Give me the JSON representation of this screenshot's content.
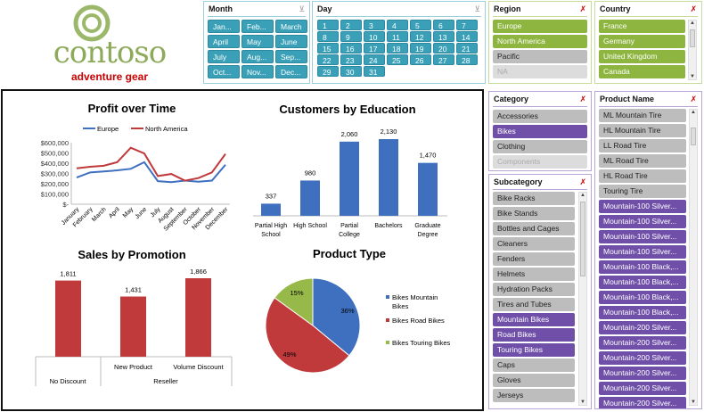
{
  "logo": {
    "name": "contoso",
    "tagline": "adventure gear"
  },
  "month": {
    "title": "Month",
    "items": [
      "Jan...",
      "Feb...",
      "March",
      "April",
      "May",
      "June",
      "July",
      "Aug...",
      "Sep...",
      "Oct...",
      "Nov...",
      "Dec..."
    ]
  },
  "day": {
    "title": "Day",
    "items": [
      "1",
      "2",
      "3",
      "4",
      "5",
      "6",
      "7",
      "8",
      "9",
      "10",
      "11",
      "12",
      "13",
      "14",
      "15",
      "16",
      "17",
      "18",
      "19",
      "20",
      "21",
      "22",
      "23",
      "24",
      "25",
      "26",
      "27",
      "28",
      "29",
      "30",
      "31"
    ]
  },
  "region": {
    "title": "Region",
    "items": [
      {
        "label": "Europe",
        "state": "selected"
      },
      {
        "label": "North America",
        "state": "selected"
      },
      {
        "label": "Pacific",
        "state": "unselected"
      },
      {
        "label": "NA",
        "state": "empty"
      }
    ]
  },
  "country": {
    "title": "Country",
    "items": [
      "France",
      "Germany",
      "United Kingdom",
      "Canada"
    ]
  },
  "category": {
    "title": "Category",
    "items": [
      {
        "label": "Accessories",
        "state": "unselected"
      },
      {
        "label": "Bikes",
        "state": "selected"
      },
      {
        "label": "Clothing",
        "state": "unselected"
      },
      {
        "label": "Components",
        "state": "empty"
      }
    ]
  },
  "subcategory": {
    "title": "Subcategory",
    "items": [
      {
        "label": "Bike Racks",
        "state": "unselected"
      },
      {
        "label": "Bike Stands",
        "state": "unselected"
      },
      {
        "label": "Bottles and Cages",
        "state": "unselected"
      },
      {
        "label": "Cleaners",
        "state": "unselected"
      },
      {
        "label": "Fenders",
        "state": "unselected"
      },
      {
        "label": "Helmets",
        "state": "unselected"
      },
      {
        "label": "Hydration Packs",
        "state": "unselected"
      },
      {
        "label": "Tires and Tubes",
        "state": "unselected"
      },
      {
        "label": "Mountain Bikes",
        "state": "selected"
      },
      {
        "label": "Road Bikes",
        "state": "selected"
      },
      {
        "label": "Touring Bikes",
        "state": "selected"
      },
      {
        "label": "Caps",
        "state": "unselected"
      },
      {
        "label": "Gloves",
        "state": "unselected"
      },
      {
        "label": "Jerseys",
        "state": "unselected"
      }
    ]
  },
  "product": {
    "title": "Product Name",
    "items": [
      {
        "label": "ML Mountain Tire",
        "state": "unselected"
      },
      {
        "label": "HL Mountain Tire",
        "state": "unselected"
      },
      {
        "label": "LL Road Tire",
        "state": "unselected"
      },
      {
        "label": "ML Road Tire",
        "state": "unselected"
      },
      {
        "label": "HL Road Tire",
        "state": "unselected"
      },
      {
        "label": "Touring Tire",
        "state": "unselected"
      },
      {
        "label": "Mountain-100 Silver...",
        "state": "selected"
      },
      {
        "label": "Mountain-100 Silver...",
        "state": "selected"
      },
      {
        "label": "Mountain-100 Silver...",
        "state": "selected"
      },
      {
        "label": "Mountain-100 Silver...",
        "state": "selected"
      },
      {
        "label": "Mountain-100 Black,...",
        "state": "selected"
      },
      {
        "label": "Mountain-100 Black,...",
        "state": "selected"
      },
      {
        "label": "Mountain-100 Black,...",
        "state": "selected"
      },
      {
        "label": "Mountain-100 Black,...",
        "state": "selected"
      },
      {
        "label": "Mountain-200 Silver...",
        "state": "selected"
      },
      {
        "label": "Mountain-200 Silver...",
        "state": "selected"
      },
      {
        "label": "Mountain-200 Silver...",
        "state": "selected"
      },
      {
        "label": "Mountain-200 Silver...",
        "state": "selected"
      },
      {
        "label": "Mountain-200 Silver...",
        "state": "selected"
      },
      {
        "label": "Mountain-200 Silver...",
        "state": "selected"
      }
    ]
  },
  "colors": {
    "teal": "#3aa0b8",
    "green": "#8db53f",
    "purple": "#6f4fa8",
    "blue": "#3f6fbf",
    "red": "#c0393b",
    "pie_green": "#97b94a"
  },
  "chart_data": [
    {
      "type": "line",
      "title": "Profit over Time",
      "categories": [
        "January",
        "February",
        "March",
        "April",
        "May",
        "June",
        "July",
        "August",
        "September",
        "October",
        "November",
        "December"
      ],
      "series": [
        {
          "name": "Europe",
          "color": "#3f6fbf",
          "values": [
            260000,
            310000,
            320000,
            330000,
            345000,
            410000,
            225000,
            215000,
            230000,
            220000,
            230000,
            385000
          ]
        },
        {
          "name": "North America",
          "color": "#c0393b",
          "values": [
            350000,
            365000,
            375000,
            410000,
            550000,
            495000,
            275000,
            295000,
            230000,
            255000,
            310000,
            490000
          ]
        }
      ],
      "yticks": [
        "$-",
        "$100,000",
        "$200,000",
        "$300,000",
        "$400,000",
        "$500,000",
        "$600,000"
      ],
      "ylim": [
        0,
        600000
      ],
      "legend": "top"
    },
    {
      "type": "bar",
      "title": "Customers by Education",
      "categories": [
        "Partial High School",
        "High School",
        "Partial College",
        "Bachelors",
        "Graduate Degree"
      ],
      "values": [
        337,
        980,
        2060,
        2130,
        1470
      ],
      "labels": [
        "337",
        "980",
        "2,060",
        "2,130",
        "1,470"
      ]
    },
    {
      "type": "bar",
      "title": "Sales by Promotion",
      "categories": [
        "No Discount",
        "New Product",
        "Volume Discount"
      ],
      "groups": [
        "",
        "Reseller",
        "Reseller"
      ],
      "values": [
        1811,
        1431,
        1866
      ],
      "labels": [
        "1,811",
        "1,431",
        "1,866"
      ],
      "group_labels": [
        "No Discount",
        "Reseller"
      ]
    },
    {
      "type": "pie",
      "title": "Product Type",
      "categories": [
        "Bikes Mountain Bikes",
        "Bikes Road Bikes",
        "Bikes Touring Bikes"
      ],
      "values": [
        36,
        49,
        15
      ],
      "labels": [
        "36%",
        "49%",
        "15%"
      ],
      "legend": "right"
    }
  ]
}
